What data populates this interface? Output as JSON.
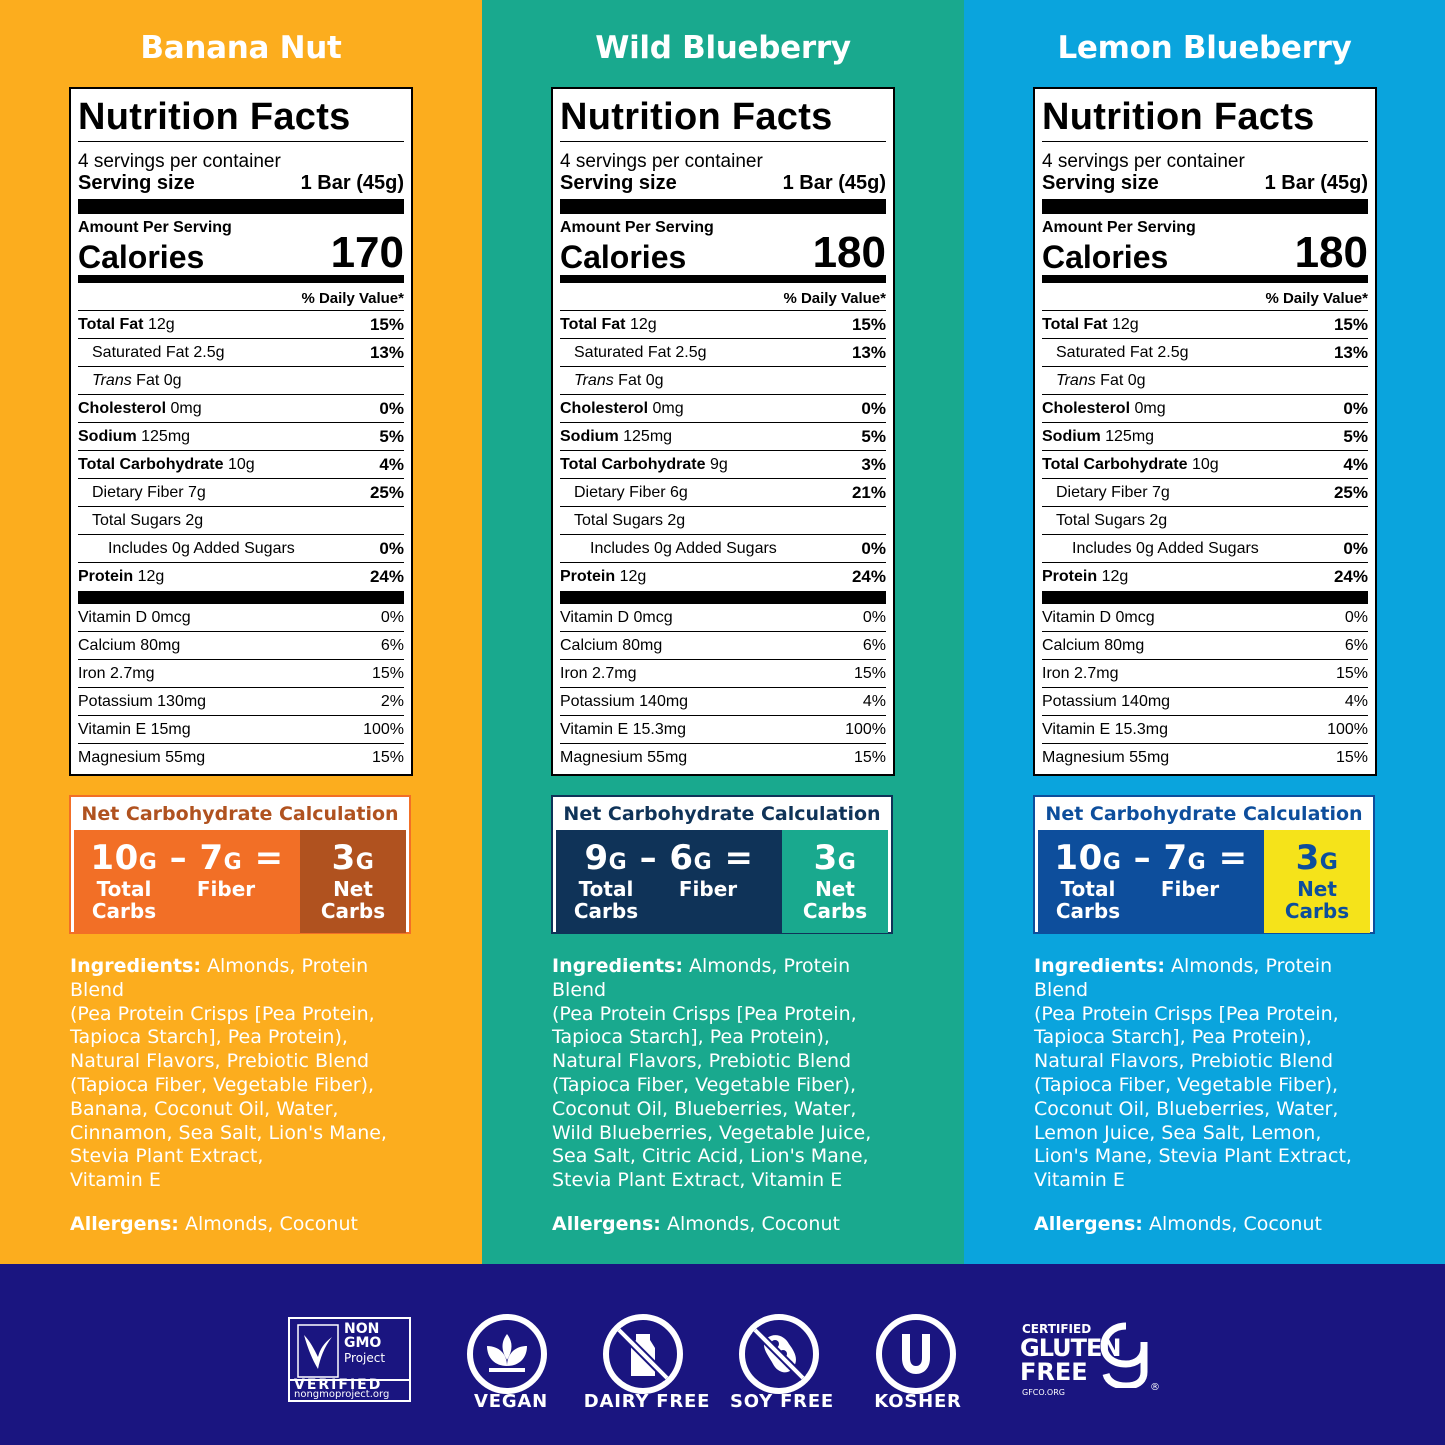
{
  "colors": {
    "banana": "#fcad1e",
    "wild": "#19a98e",
    "lemon": "#0aa4dd",
    "footer": "#1a1580"
  },
  "columns": [
    {
      "flavor": "Banana Nut",
      "nf": {
        "title": "Nutrition Facts",
        "servings": "4 servings per container",
        "serving_size_label": "Serving size",
        "serving_size": "1 Bar (45g)",
        "amount_label": "Amount Per Serving",
        "calories_label": "Calories",
        "calories": "170",
        "dv_label": "% Daily Value*",
        "total_fat_label": "Total Fat",
        "total_fat": "12g",
        "total_fat_pct": "15%",
        "sat_fat_label": "Saturated Fat 2.5g",
        "sat_fat_pct": "13%",
        "trans_label": "Trans",
        "trans_rest": "Fat 0g",
        "chol_label": "Cholesterol",
        "chol": "0mg",
        "chol_pct": "0%",
        "sodium_label": "Sodium",
        "sodium": "125mg",
        "sodium_pct": "5%",
        "carb_label": "Total Carbohydrate",
        "carb": "10g",
        "carb_pct": "4%",
        "fiber_label": "Dietary Fiber 7g",
        "fiber_pct": "25%",
        "sugars_label": "Total Sugars 2g",
        "added_label": "Includes 0g Added Sugars",
        "added_pct": "0%",
        "protein_label": "Protein",
        "protein": "12g",
        "protein_pct": "24%",
        "vitd": "Vitamin D 0mcg",
        "vitd_pct": "0%",
        "calcium": "Calcium 80mg",
        "calcium_pct": "6%",
        "iron": "Iron 2.7mg",
        "iron_pct": "15%",
        "potassium": "Potassium 130mg",
        "potassium_pct": "2%",
        "vite": "Vitamin E 15mg",
        "vite_pct": "100%",
        "magnesium": "Magnesium 55mg",
        "magnesium_pct": "15%"
      },
      "net": {
        "title": "Net Carbohydrate Calculation",
        "total": "10",
        "fiber": "7",
        "net": "3",
        "unit": "G",
        "minus": "–",
        "equals": "=",
        "total_label_1": "Total",
        "total_label_2": "Carbs",
        "fiber_label": "Fiber",
        "net_label_1": "Net",
        "net_label_2": "Carbs",
        "title_color": "#b0521f",
        "left_bg": "#f26f26",
        "right_bg": "#b0521f",
        "right_fg": "#ffffff"
      },
      "ingredients_label": "Ingredients:",
      "ingredients": [
        "Almonds, Protein Blend",
        "(Pea Protein Crisps [Pea Protein,",
        "Tapioca Starch], Pea Protein),",
        "Natural Flavors, Prebiotic Blend",
        "(Tapioca Fiber, Vegetable Fiber),",
        "Banana, Coconut Oil, Water,",
        "Cinnamon, Sea Salt, Lion's Mane,",
        "Stevia Plant Extract,",
        "Vitamin E"
      ],
      "allergens_label": "Allergens:",
      "allergens": "Almonds, Coconut"
    },
    {
      "flavor": "Wild Blueberry",
      "nf": {
        "title": "Nutrition Facts",
        "servings": "4 servings per container",
        "serving_size_label": "Serving size",
        "serving_size": "1 Bar (45g)",
        "amount_label": "Amount Per Serving",
        "calories_label": "Calories",
        "calories": "180",
        "dv_label": "% Daily Value*",
        "total_fat_label": "Total Fat",
        "total_fat": "12g",
        "total_fat_pct": "15%",
        "sat_fat_label": "Saturated Fat 2.5g",
        "sat_fat_pct": "13%",
        "trans_label": "Trans",
        "trans_rest": "Fat 0g",
        "chol_label": "Cholesterol",
        "chol": "0mg",
        "chol_pct": "0%",
        "sodium_label": "Sodium",
        "sodium": "125mg",
        "sodium_pct": "5%",
        "carb_label": "Total Carbohydrate",
        "carb": "9g",
        "carb_pct": "3%",
        "fiber_label": "Dietary Fiber 6g",
        "fiber_pct": "21%",
        "sugars_label": "Total Sugars 2g",
        "added_label": "Includes 0g Added Sugars",
        "added_pct": "0%",
        "protein_label": "Protein",
        "protein": "12g",
        "protein_pct": "24%",
        "vitd": "Vitamin D 0mcg",
        "vitd_pct": "0%",
        "calcium": "Calcium 80mg",
        "calcium_pct": "6%",
        "iron": "Iron 2.7mg",
        "iron_pct": "15%",
        "potassium": "Potassium 140mg",
        "potassium_pct": "4%",
        "vite": "Vitamin E 15.3mg",
        "vite_pct": "100%",
        "magnesium": "Magnesium 55mg",
        "magnesium_pct": "15%"
      },
      "net": {
        "title": "Net Carbohydrate Calculation",
        "total": "9",
        "fiber": "6",
        "net": "3",
        "unit": "G",
        "minus": "–",
        "equals": "=",
        "total_label_1": "Total",
        "total_label_2": "Carbs",
        "fiber_label": "Fiber",
        "net_label_1": "Net",
        "net_label_2": "Carbs",
        "title_color": "#0f3358",
        "left_bg": "#0f3358",
        "right_bg": "#19a98e",
        "right_fg": "#ffffff"
      },
      "ingredients_label": "Ingredients:",
      "ingredients": [
        "Almonds, Protein Blend",
        "(Pea Protein Crisps [Pea Protein,",
        "Tapioca Starch], Pea Protein),",
        "Natural Flavors, Prebiotic Blend",
        "(Tapioca Fiber, Vegetable Fiber),",
        "Coconut Oil, Blueberries, Water,",
        "Wild Blueberries, Vegetable Juice,",
        "Sea Salt, Citric Acid, Lion's Mane,",
        "Stevia Plant Extract, Vitamin E"
      ],
      "allergens_label": "Allergens:",
      "allergens": "Almonds, Coconut"
    },
    {
      "flavor": "Lemon Blueberry",
      "nf": {
        "title": "Nutrition Facts",
        "servings": "4 servings per container",
        "serving_size_label": "Serving size",
        "serving_size": "1 Bar (45g)",
        "amount_label": "Amount Per Serving",
        "calories_label": "Calories",
        "calories": "180",
        "dv_label": "% Daily Value*",
        "total_fat_label": "Total Fat",
        "total_fat": "12g",
        "total_fat_pct": "15%",
        "sat_fat_label": "Saturated Fat 2.5g",
        "sat_fat_pct": "13%",
        "trans_label": "Trans",
        "trans_rest": "Fat 0g",
        "chol_label": "Cholesterol",
        "chol": "0mg",
        "chol_pct": "0%",
        "sodium_label": "Sodium",
        "sodium": "125mg",
        "sodium_pct": "5%",
        "carb_label": "Total Carbohydrate",
        "carb": "10g",
        "carb_pct": "4%",
        "fiber_label": "Dietary Fiber 7g",
        "fiber_pct": "25%",
        "sugars_label": "Total Sugars 2g",
        "added_label": "Includes 0g Added Sugars",
        "added_pct": "0%",
        "protein_label": "Protein",
        "protein": "12g",
        "protein_pct": "24%",
        "vitd": "Vitamin D 0mcg",
        "vitd_pct": "0%",
        "calcium": "Calcium 80mg",
        "calcium_pct": "6%",
        "iron": "Iron 2.7mg",
        "iron_pct": "15%",
        "potassium": "Potassium 140mg",
        "potassium_pct": "4%",
        "vite": "Vitamin E 15.3mg",
        "vite_pct": "100%",
        "magnesium": "Magnesium 55mg",
        "magnesium_pct": "15%"
      },
      "net": {
        "title": "Net Carbohydrate Calculation",
        "total": "10",
        "fiber": "7",
        "net": "3",
        "unit": "G",
        "minus": "–",
        "equals": "=",
        "total_label_1": "Total",
        "total_label_2": "Carbs",
        "fiber_label": "Fiber",
        "net_label_1": "Net",
        "net_label_2": "Carbs",
        "title_color": "#0d4e9c",
        "left_bg": "#0d4e9c",
        "right_bg": "#f5e31a",
        "right_fg": "#0d4e9c"
      },
      "ingredients_label": "Ingredients:",
      "ingredients": [
        "Almonds, Protein Blend",
        "(Pea Protein Crisps [Pea Protein,",
        "Tapioca Starch], Pea Protein),",
        "Natural Flavors, Prebiotic Blend",
        "(Tapioca Fiber, Vegetable Fiber),",
        "Coconut Oil, Blueberries, Water,",
        "Lemon Juice, Sea Salt, Lemon,",
        "Lion's Mane, Stevia Plant Extract,",
        "Vitamin E"
      ],
      "allergens_label": "Allergens:",
      "allergens": "Almonds, Coconut"
    }
  ],
  "footer": {
    "nongmo": {
      "line1": "NON",
      "line2": "GMO",
      "line3": "Project",
      "verified": "VERIFIED",
      "url": "nongmoproject.org",
      "icon": "butterfly-leaf-icon"
    },
    "badges": [
      {
        "label": "VEGAN",
        "icon": "leaf-sprout-icon"
      },
      {
        "label": "DAIRY FREE",
        "icon": "no-milk-icon"
      },
      {
        "label": "SOY FREE",
        "icon": "no-soy-icon"
      },
      {
        "label": "KOSHER",
        "icon": "kosher-u-icon"
      }
    ],
    "gluten": {
      "certified": "CERTIFIED",
      "line1": "GLUTEN",
      "line2": "FREE",
      "url": "GFCO.ORG",
      "reg": "®",
      "icon": "gfco-g-icon"
    }
  }
}
